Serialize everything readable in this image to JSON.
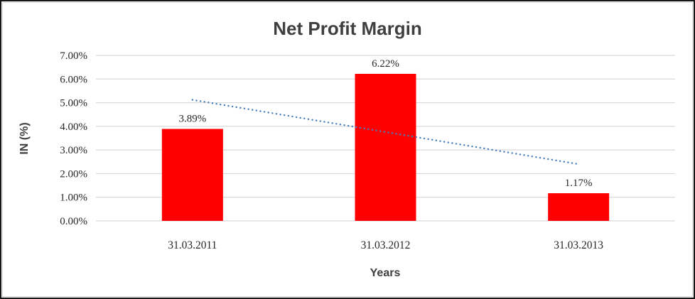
{
  "chart_data": {
    "type": "bar",
    "title": "Net Profit Margin",
    "xlabel": "Years",
    "ylabel": "IN (%)",
    "categories": [
      "31.03.2011",
      "31.03.2012",
      "31.03.2013"
    ],
    "values": [
      3.89,
      6.22,
      1.17
    ],
    "data_labels": [
      "3.89%",
      "6.22%",
      "1.17%"
    ],
    "y_ticks": [
      "0.00%",
      "1.00%",
      "2.00%",
      "3.00%",
      "4.00%",
      "5.00%",
      "6.00%",
      "7.00%"
    ],
    "ylim": [
      0,
      7
    ],
    "y_step": 1,
    "grid": true,
    "legend": "none",
    "bar_color": "#ff0000",
    "trendline": {
      "type": "linear",
      "style": "dotted",
      "color": "#4a7ebb",
      "start_value": 5.12,
      "end_value": 2.4
    }
  },
  "colors": {
    "grid": "#d9d9d9",
    "text": "#262626",
    "title": "#3f3f3f",
    "outer_border": "#161616",
    "chart_frame": "#d9d9d9",
    "background": "#ffffff"
  }
}
